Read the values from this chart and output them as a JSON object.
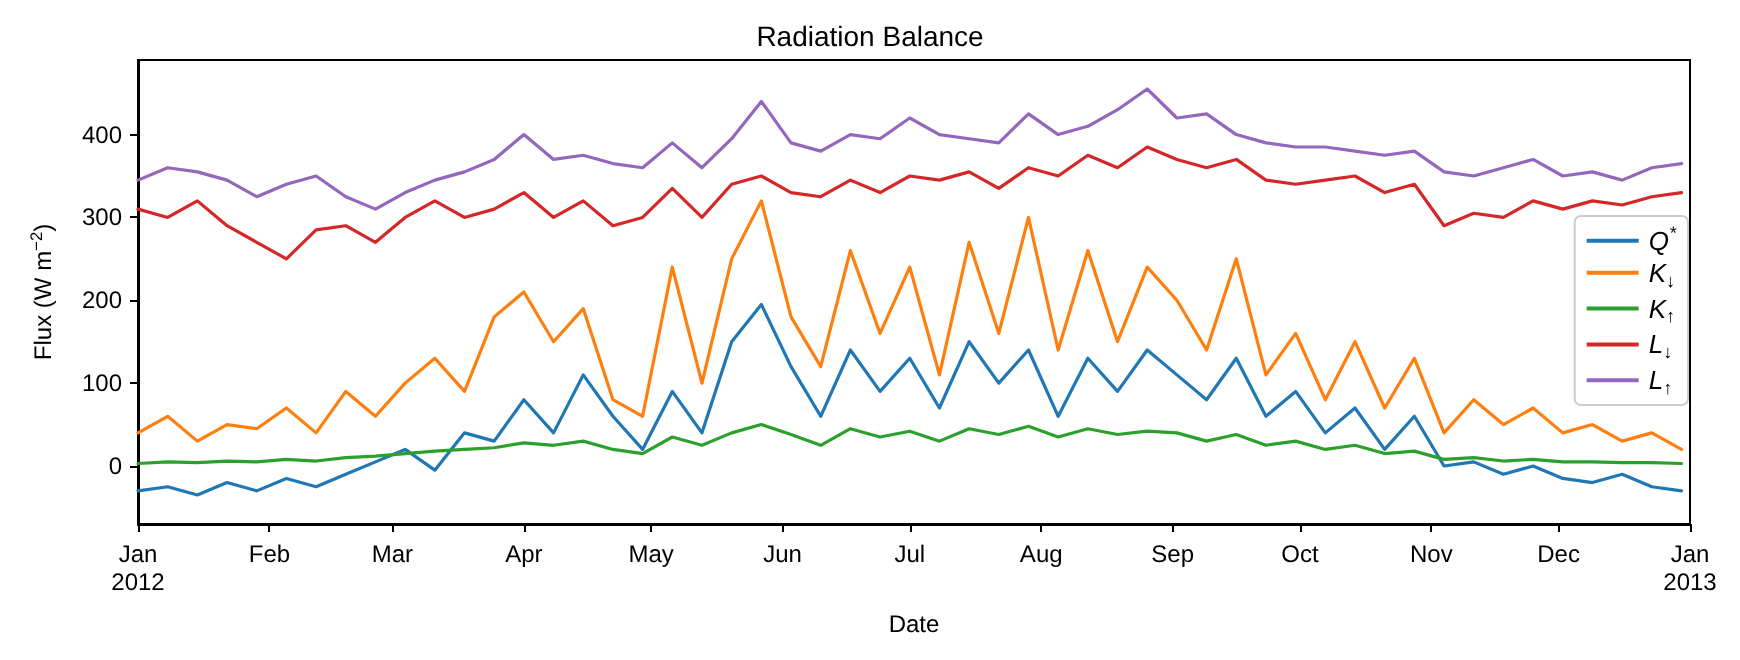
{
  "chart_data": {
    "type": "line",
    "title": "Radiation Balance",
    "xlabel": "Date",
    "ylabel": "Flux (W m$^{−2}$)",
    "x": [
      "2012-01-01",
      "2012-01-08",
      "2012-01-15",
      "2012-01-22",
      "2012-01-29",
      "2012-02-05",
      "2012-02-12",
      "2012-02-19",
      "2012-02-26",
      "2012-03-04",
      "2012-03-11",
      "2012-03-18",
      "2012-03-25",
      "2012-04-01",
      "2012-04-08",
      "2012-04-15",
      "2012-04-22",
      "2012-04-29",
      "2012-05-06",
      "2012-05-13",
      "2012-05-20",
      "2012-05-27",
      "2012-06-03",
      "2012-06-10",
      "2012-06-17",
      "2012-06-24",
      "2012-07-01",
      "2012-07-08",
      "2012-07-15",
      "2012-07-22",
      "2012-07-29",
      "2012-08-05",
      "2012-08-12",
      "2012-08-19",
      "2012-08-26",
      "2012-09-02",
      "2012-09-09",
      "2012-09-16",
      "2012-09-23",
      "2012-09-30",
      "2012-10-07",
      "2012-10-14",
      "2012-10-21",
      "2012-10-28",
      "2012-11-04",
      "2012-11-11",
      "2012-11-18",
      "2012-11-25",
      "2012-12-02",
      "2012-12-09",
      "2012-12-16",
      "2012-12-23",
      "2012-12-30"
    ],
    "series": [
      {
        "name": "Q$^{*}$",
        "color": "#1f77b4",
        "values": [
          -30,
          -25,
          -35,
          -20,
          -30,
          -15,
          -25,
          -10,
          5,
          20,
          -5,
          40,
          30,
          80,
          40,
          110,
          60,
          20,
          90,
          40,
          150,
          195,
          120,
          60,
          140,
          90,
          130,
          70,
          150,
          100,
          140,
          60,
          130,
          90,
          140,
          110,
          80,
          130,
          60,
          90,
          40,
          70,
          20,
          60,
          0,
          5,
          -10,
          0,
          -15,
          -20,
          -10,
          -25,
          -30
        ]
      },
      {
        "name": "K$_{↓}$",
        "color": "#ff7f0e",
        "values": [
          40,
          60,
          30,
          50,
          45,
          70,
          40,
          90,
          60,
          100,
          130,
          90,
          180,
          210,
          150,
          190,
          80,
          60,
          240,
          100,
          250,
          320,
          180,
          120,
          260,
          160,
          240,
          110,
          270,
          160,
          300,
          140,
          260,
          150,
          240,
          200,
          140,
          250,
          110,
          160,
          80,
          150,
          70,
          130,
          40,
          80,
          50,
          70,
          40,
          50,
          30,
          40,
          20
        ]
      },
      {
        "name": "K$_{↑}$",
        "color": "#2ca02c",
        "values": [
          3,
          5,
          4,
          6,
          5,
          8,
          6,
          10,
          12,
          15,
          18,
          20,
          22,
          28,
          25,
          30,
          20,
          15,
          35,
          25,
          40,
          50,
          38,
          25,
          45,
          35,
          42,
          30,
          45,
          38,
          48,
          35,
          45,
          38,
          42,
          40,
          30,
          38,
          25,
          30,
          20,
          25,
          15,
          18,
          8,
          10,
          6,
          8,
          5,
          5,
          4,
          4,
          3
        ]
      },
      {
        "name": "L$_{↓}$",
        "color": "#d62728",
        "values": [
          310,
          300,
          320,
          290,
          270,
          250,
          285,
          290,
          270,
          300,
          320,
          300,
          310,
          330,
          300,
          320,
          290,
          300,
          335,
          300,
          340,
          350,
          330,
          325,
          345,
          330,
          350,
          345,
          355,
          335,
          360,
          350,
          375,
          360,
          385,
          370,
          360,
          370,
          345,
          340,
          345,
          350,
          330,
          340,
          290,
          305,
          300,
          320,
          310,
          320,
          315,
          325,
          330
        ]
      },
      {
        "name": "L$_{↑}$",
        "color": "#9467bd",
        "values": [
          345,
          360,
          355,
          345,
          325,
          340,
          350,
          325,
          310,
          330,
          345,
          355,
          370,
          400,
          370,
          375,
          365,
          360,
          390,
          360,
          395,
          440,
          390,
          380,
          400,
          395,
          420,
          400,
          395,
          390,
          425,
          400,
          410,
          430,
          455,
          420,
          425,
          400,
          390,
          385,
          385,
          380,
          375,
          380,
          355,
          350,
          360,
          370,
          350,
          355,
          345,
          360,
          365
        ]
      }
    ],
    "xlim": [
      "2012-01-01",
      "2013-01-01"
    ],
    "xticks": [
      {
        "value": "2012-01-01",
        "label": "Jan\n2012"
      },
      {
        "value": "2012-02-01",
        "label": "Feb"
      },
      {
        "value": "2012-03-01",
        "label": "Mar"
      },
      {
        "value": "2012-04-01",
        "label": "Apr"
      },
      {
        "value": "2012-05-01",
        "label": "May"
      },
      {
        "value": "2012-06-01",
        "label": "Jun"
      },
      {
        "value": "2012-07-01",
        "label": "Jul"
      },
      {
        "value": "2012-08-01",
        "label": "Aug"
      },
      {
        "value": "2012-09-01",
        "label": "Sep"
      },
      {
        "value": "2012-10-01",
        "label": "Oct"
      },
      {
        "value": "2012-11-01",
        "label": "Nov"
      },
      {
        "value": "2012-12-01",
        "label": "Dec"
      },
      {
        "value": "2013-01-01",
        "label": "Jan\n2013"
      }
    ],
    "ylim": [
      -70,
      490
    ],
    "yticks": [
      0,
      100,
      200,
      300,
      400
    ],
    "legend": "right",
    "marker": "none",
    "line_style": "solid",
    "grid": false
  }
}
